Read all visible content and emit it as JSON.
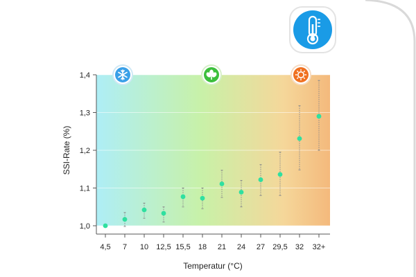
{
  "header_icon": {
    "name": "thermometer-icon",
    "color": "#1a9be6"
  },
  "colors": {
    "marker": "#2fe0a0",
    "error_bar": "#8a8a8a",
    "frame": "#d9d9d9",
    "cold": "#aeeef6",
    "mild": "#c8f1a8",
    "warm": "#f5d79a",
    "hot": "#f4b97c"
  },
  "zone_icons": [
    {
      "name": "snowflake-icon",
      "color": "#3aa0e8"
    },
    {
      "name": "leaf-icon",
      "color": "#3cbf3c"
    },
    {
      "name": "sun-icon",
      "color": "#f07020"
    }
  ],
  "chart_data": {
    "type": "scatter",
    "categories": [
      "4,5",
      "7",
      "10",
      "12,5",
      "15,5",
      "18",
      "21",
      "24",
      "27",
      "29,5",
      "32",
      "32+"
    ],
    "values": [
      1.0,
      1.017,
      1.042,
      1.033,
      1.077,
      1.073,
      1.111,
      1.089,
      1.122,
      1.136,
      1.231,
      1.29
    ],
    "error_low": [
      1.0,
      0.998,
      1.02,
      1.01,
      1.05,
      1.045,
      1.075,
      1.05,
      1.08,
      1.08,
      1.148,
      1.2
    ],
    "error_high": [
      1.0,
      1.035,
      1.06,
      1.05,
      1.1,
      1.1,
      1.147,
      1.12,
      1.162,
      1.195,
      1.318,
      1.385
    ],
    "ylim": [
      1.0,
      1.4
    ],
    "yticks": [
      "1,0",
      "1,1",
      "1,2",
      "1,3",
      "1,4"
    ],
    "ytick_values": [
      1.0,
      1.1,
      1.2,
      1.3,
      1.4
    ],
    "xlabel": "Temperatur (°C)",
    "ylabel": "SSI-Rate (%)",
    "grid": true
  }
}
